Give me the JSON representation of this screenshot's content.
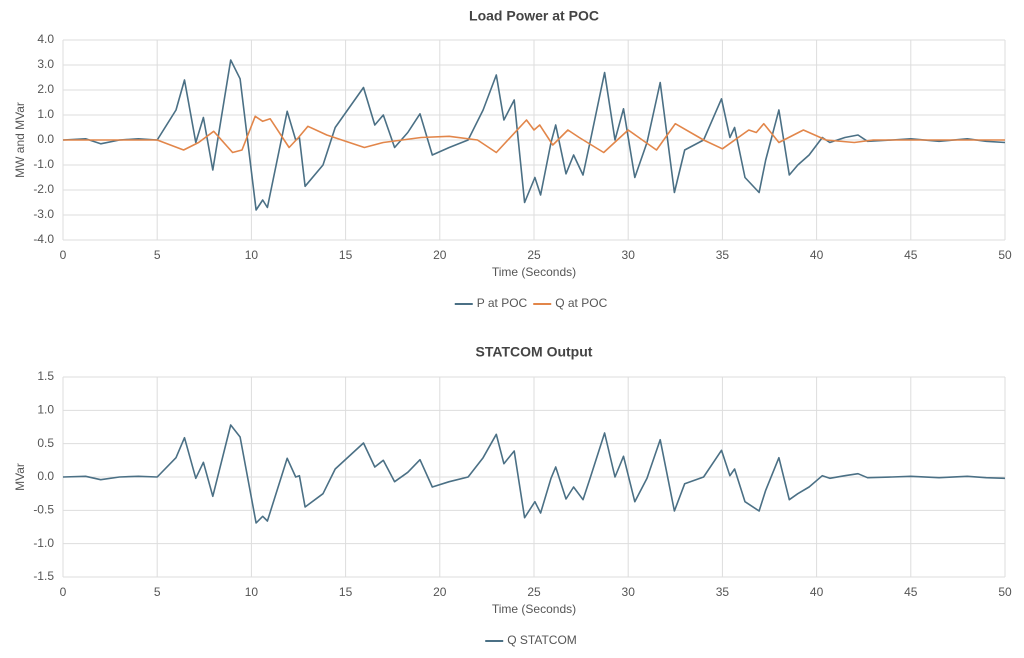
{
  "chart_data": [
    {
      "type": "line",
      "title": "Load Power at POC",
      "x_label": "Time (Seconds)",
      "y_label": "MW and MVar",
      "xlim": [
        0,
        50
      ],
      "xticks": [
        0,
        5,
        10,
        15,
        20,
        25,
        30,
        35,
        40,
        45,
        50
      ],
      "ylim": [
        -4,
        4
      ],
      "yticks": [
        {
          "value": 4,
          "label": "4.0"
        },
        {
          "value": 3,
          "label": "3.0"
        },
        {
          "value": 2,
          "label": "2.0"
        },
        {
          "value": 1,
          "label": "1.0"
        },
        {
          "value": 0,
          "label": "0.0"
        },
        {
          "value": -1,
          "label": "-1.0"
        },
        {
          "value": -2,
          "label": "-2.0"
        },
        {
          "value": -3,
          "label": "-3.0"
        },
        {
          "value": -4,
          "label": "-4.0"
        }
      ],
      "grid": true,
      "legend": "bottom",
      "series": [
        {
          "name": "P at POC",
          "color": "#4b7085",
          "x": [
            0,
            1.2,
            2,
            3,
            4,
            5,
            6,
            6.45,
            7.05,
            7.45,
            7.95,
            8.9,
            9.4,
            10.25,
            10.6,
            10.85,
            11.9,
            12.35,
            12.55,
            12.85,
            13.8,
            14.45,
            15.95,
            16.55,
            17.0,
            17.6,
            18.3,
            18.95,
            19.6,
            20.5,
            21.5,
            22.3,
            23.0,
            23.4,
            23.95,
            24.5,
            25.05,
            25.35,
            25.9,
            26.15,
            26.7,
            27.1,
            27.6,
            28.0,
            28.75,
            29.3,
            29.75,
            30.35,
            31.0,
            31.7,
            32.45,
            33.0,
            34.0,
            34.95,
            35.4,
            35.65,
            36.2,
            36.95,
            37.3,
            38.0,
            38.55,
            39.0,
            39.6,
            40.3,
            40.7,
            41.5,
            42.2,
            42.7,
            44,
            45,
            46.5,
            48,
            49,
            50
          ],
          "values": [
            0,
            0.05,
            -0.15,
            0,
            0.05,
            0,
            1.2,
            2.4,
            -0.1,
            0.9,
            -1.2,
            3.2,
            2.45,
            -2.8,
            -2.4,
            -2.7,
            1.15,
            0,
            0.1,
            -1.85,
            -1.0,
            0.5,
            2.1,
            0.6,
            1.0,
            -0.3,
            0.3,
            1.05,
            -0.6,
            -0.3,
            0,
            1.2,
            2.6,
            0.8,
            1.6,
            -2.5,
            -1.5,
            -2.2,
            -0.1,
            0.6,
            -1.35,
            -0.6,
            -1.4,
            0,
            2.7,
            0,
            1.25,
            -1.5,
            -0.1,
            2.3,
            -2.1,
            -0.4,
            0,
            1.65,
            0.1,
            0.5,
            -1.5,
            -2.1,
            -0.8,
            1.2,
            -1.4,
            -1.0,
            -0.6,
            0.1,
            -0.1,
            0.1,
            0.2,
            -0.05,
            0,
            0.05,
            -0.05,
            0.05,
            -0.05,
            -0.1
          ]
        },
        {
          "name": "Q at POC",
          "color": "#e2864a",
          "x": [
            0,
            5,
            6.4,
            7.2,
            8.0,
            9.0,
            9.5,
            10.2,
            10.6,
            11.0,
            12.0,
            12.5,
            13.0,
            14,
            16,
            17,
            19,
            20.5,
            22,
            23.0,
            24.6,
            25.0,
            25.3,
            26.0,
            26.8,
            27.4,
            28.7,
            30.0,
            31.5,
            32.5,
            34,
            35.0,
            36.4,
            36.8,
            37.2,
            38.0,
            39.3,
            40.5,
            42,
            43,
            50
          ],
          "values": [
            0,
            0,
            -0.4,
            -0.1,
            0.35,
            -0.5,
            -0.4,
            0.95,
            0.75,
            0.85,
            -0.3,
            0.1,
            0.55,
            0.2,
            -0.3,
            -0.1,
            0.1,
            0.15,
            0,
            -0.5,
            0.8,
            0.4,
            0.6,
            -0.2,
            0.4,
            0.1,
            -0.5,
            0.4,
            -0.4,
            0.65,
            0,
            -0.35,
            0.4,
            0.3,
            0.65,
            -0.1,
            0.4,
            0,
            -0.1,
            0,
            0
          ]
        }
      ]
    },
    {
      "type": "line",
      "title": "STATCOM Output",
      "x_label": "Time (Seconds)",
      "y_label": "MVar",
      "xlim": [
        0,
        50
      ],
      "xticks": [
        0,
        5,
        10,
        15,
        20,
        25,
        30,
        35,
        40,
        45,
        50
      ],
      "ylim": [
        -1.5,
        1.5
      ],
      "yticks": [
        1.5,
        {
          "value": 1,
          "label": "1.0"
        },
        0.5,
        {
          "value": 0,
          "label": "0.0"
        },
        -0.5,
        {
          "value": -1,
          "label": "-1.0"
        },
        -1.5
      ],
      "grid": true,
      "legend": "bottom",
      "series": [
        {
          "name": "Q STATCOM",
          "color": "#4b7085",
          "x": [
            0,
            1.2,
            2,
            3,
            4,
            5,
            6,
            6.45,
            7.05,
            7.45,
            7.95,
            8.9,
            9.4,
            10.25,
            10.6,
            10.85,
            11.9,
            12.35,
            12.55,
            12.85,
            13.8,
            14.45,
            15.95,
            16.55,
            17.0,
            17.6,
            18.3,
            18.95,
            19.6,
            20.5,
            21.5,
            22.3,
            23.0,
            23.4,
            23.95,
            24.5,
            25.05,
            25.35,
            25.9,
            26.15,
            26.7,
            27.1,
            27.6,
            28.0,
            28.75,
            29.3,
            29.75,
            30.35,
            31.0,
            31.7,
            32.45,
            33.0,
            34.0,
            34.95,
            35.4,
            35.65,
            36.2,
            36.95,
            37.3,
            38.0,
            38.55,
            39.0,
            39.6,
            40.3,
            40.7,
            41.5,
            42.2,
            42.7,
            44,
            45,
            46.5,
            48,
            49,
            50
          ],
          "values": [
            0,
            0.01,
            -0.04,
            0,
            0.01,
            0,
            0.29,
            0.59,
            -0.02,
            0.22,
            -0.29,
            0.78,
            0.6,
            -0.69,
            -0.59,
            -0.66,
            0.28,
            0,
            0.02,
            -0.45,
            -0.25,
            0.12,
            0.51,
            0.15,
            0.25,
            -0.07,
            0.07,
            0.26,
            -0.15,
            -0.07,
            0,
            0.29,
            0.64,
            0.2,
            0.39,
            -0.61,
            -0.37,
            -0.54,
            -0.02,
            0.15,
            -0.33,
            -0.15,
            -0.34,
            0,
            0.66,
            0,
            0.31,
            -0.37,
            -0.02,
            0.56,
            -0.51,
            -0.1,
            0,
            0.4,
            0.02,
            0.12,
            -0.37,
            -0.51,
            -0.2,
            0.29,
            -0.34,
            -0.25,
            -0.15,
            0.02,
            -0.02,
            0.02,
            0.05,
            -0.01,
            0,
            0.01,
            -0.01,
            0.01,
            -0.01,
            -0.02
          ]
        }
      ]
    }
  ]
}
